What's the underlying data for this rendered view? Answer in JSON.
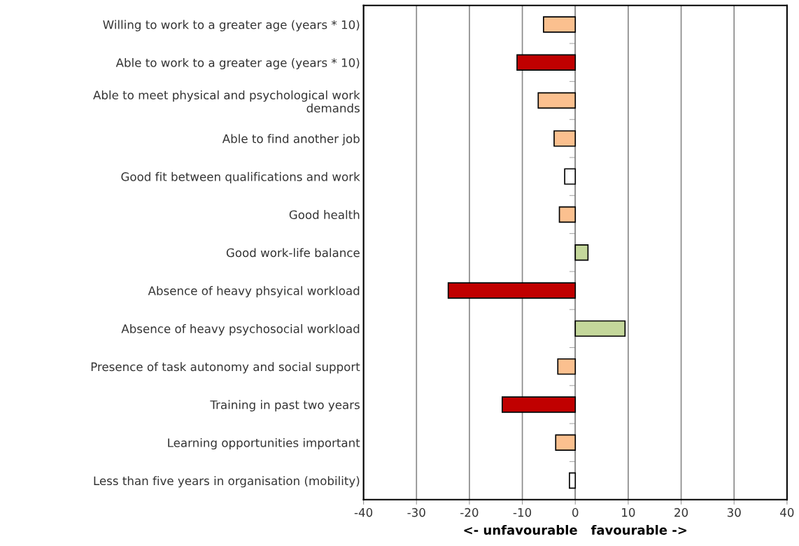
{
  "chart_data": {
    "type": "bar",
    "orientation": "horizontal",
    "xlabel": "<- unfavourable   favourable ->",
    "categories": [
      "Willing to work to a greater age (years * 10)",
      "Able to work to a greater age (years * 10)",
      "Able to meet physical and psychological work\ndemands",
      "Able to find another job",
      "Good fit between qualifications and work",
      "Good health",
      "Good work-life balance",
      "Absence of heavy phsyical workload",
      "Absence of heavy psychosocial workload",
      "Presence of task autonomy and social support",
      "Training in past two years",
      "Learning opportunities important",
      "Less than five years in organisation (mobility)"
    ],
    "values": [
      -6,
      -11,
      -7,
      -4,
      -2,
      -3,
      2.4,
      -24,
      9.4,
      -3.3,
      -13.8,
      -3.7,
      -1.1
    ],
    "colors": [
      "#fbc08f",
      "#c00000",
      "#fbc08f",
      "#fbc08f",
      "#ffffff",
      "#fbc08f",
      "#c4d79b",
      "#c00000",
      "#c4d79b",
      "#fbc08f",
      "#c00000",
      "#fbc08f",
      "#ffffff"
    ],
    "xlim": [
      -40,
      40
    ],
    "xticks": [
      -40,
      -30,
      -20,
      -10,
      0,
      10,
      20,
      30,
      40
    ],
    "grid": "x"
  }
}
